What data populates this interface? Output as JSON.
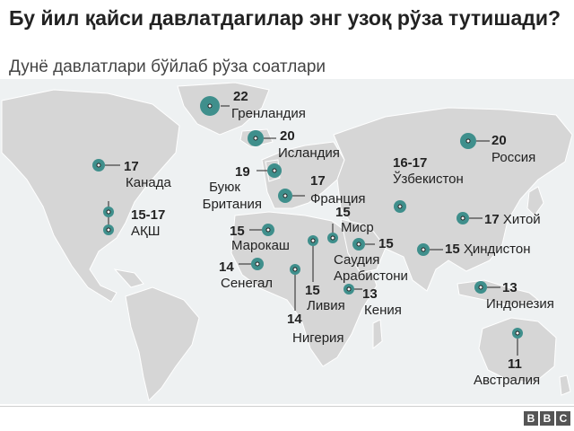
{
  "header": {
    "title": "Бу йил қайси давлатдагилар энг узоқ рўза тутишади?",
    "subtitle": "Дунё давлатлари бўйлаб рўза соатлари"
  },
  "colors": {
    "marker": "#3f8f8c",
    "land": "#d6d6d6",
    "water": "#eef1f2",
    "text": "#222222"
  },
  "countries": [
    {
      "id": "greenland",
      "name": "Гренландия",
      "hours": "22"
    },
    {
      "id": "iceland",
      "name": "Исландия",
      "hours": "20"
    },
    {
      "id": "russia",
      "name": "Россия",
      "hours": "20"
    },
    {
      "id": "canada",
      "name": "Канада",
      "hours": "17"
    },
    {
      "id": "uk",
      "name": "Буюк Британия",
      "hours": "19"
    },
    {
      "id": "france",
      "name": "Франция",
      "hours": "17"
    },
    {
      "id": "uzbekistan",
      "name": "Ўзбекистон",
      "hours": "16-17"
    },
    {
      "id": "usa",
      "name": "АҚШ",
      "hours": "15-17"
    },
    {
      "id": "china",
      "name": "Хитой",
      "hours": "17"
    },
    {
      "id": "egypt",
      "name": "Миср",
      "hours": "15"
    },
    {
      "id": "morocco",
      "name": "Марокаш",
      "hours": "15"
    },
    {
      "id": "saudi",
      "name": "Саудия Арабистони",
      "hours": "15"
    },
    {
      "id": "india",
      "name": "Ҳиндистон",
      "hours": "15"
    },
    {
      "id": "senegal",
      "name": "Сенегал",
      "hours": "14"
    },
    {
      "id": "libya",
      "name": "Ливия",
      "hours": "15"
    },
    {
      "id": "kenya",
      "name": "Кения",
      "hours": "13"
    },
    {
      "id": "indonesia",
      "name": "Индонезия",
      "hours": "13"
    },
    {
      "id": "nigeria",
      "name": "Нигерия",
      "hours": "14"
    },
    {
      "id": "australia",
      "name": "Австралия",
      "hours": "11"
    }
  ],
  "logo": {
    "letters": [
      "B",
      "B",
      "C"
    ]
  }
}
